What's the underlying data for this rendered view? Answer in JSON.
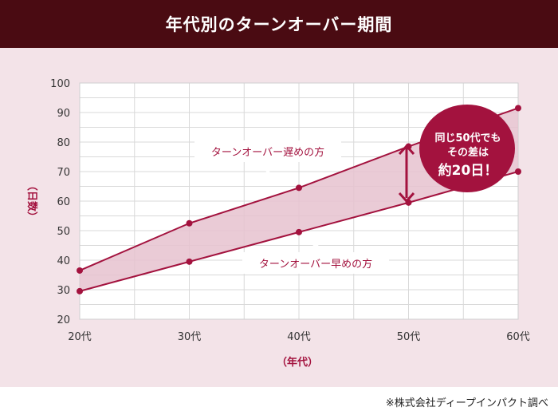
{
  "header": {
    "title": "年代別のターンオーバー期間"
  },
  "source_note": "※株式会社ディープインパクト調べ",
  "colors": {
    "header_bg": "#4a0b12",
    "panel_bg": "#f3e3e8",
    "accent": "#a3123e",
    "band_fill": "#e6c2cf"
  },
  "chart_data": {
    "type": "line",
    "x": [
      "20代",
      "30代",
      "40代",
      "50代",
      "60代"
    ],
    "xlabel": "（年代）",
    "ylabel": "（日数）",
    "ylim": [
      20,
      100
    ],
    "yticks": [
      20,
      30,
      40,
      50,
      60,
      70,
      80,
      90,
      100
    ],
    "grid": true,
    "series": [
      {
        "name": "ターンオーバー遅めの方",
        "values": [
          36.5,
          52.5,
          64.5,
          78.5,
          91.5
        ]
      },
      {
        "name": "ターンオーバー早めの方",
        "values": [
          29.5,
          39.5,
          49.5,
          59.5,
          70
        ]
      }
    ],
    "annotations": {
      "slow_label": "ターンオーバー遅めの方",
      "fast_label": "ターンオーバー早めの方",
      "bubble_lines": [
        "同じ50代でも",
        "その差は",
        "約20日！"
      ]
    }
  }
}
